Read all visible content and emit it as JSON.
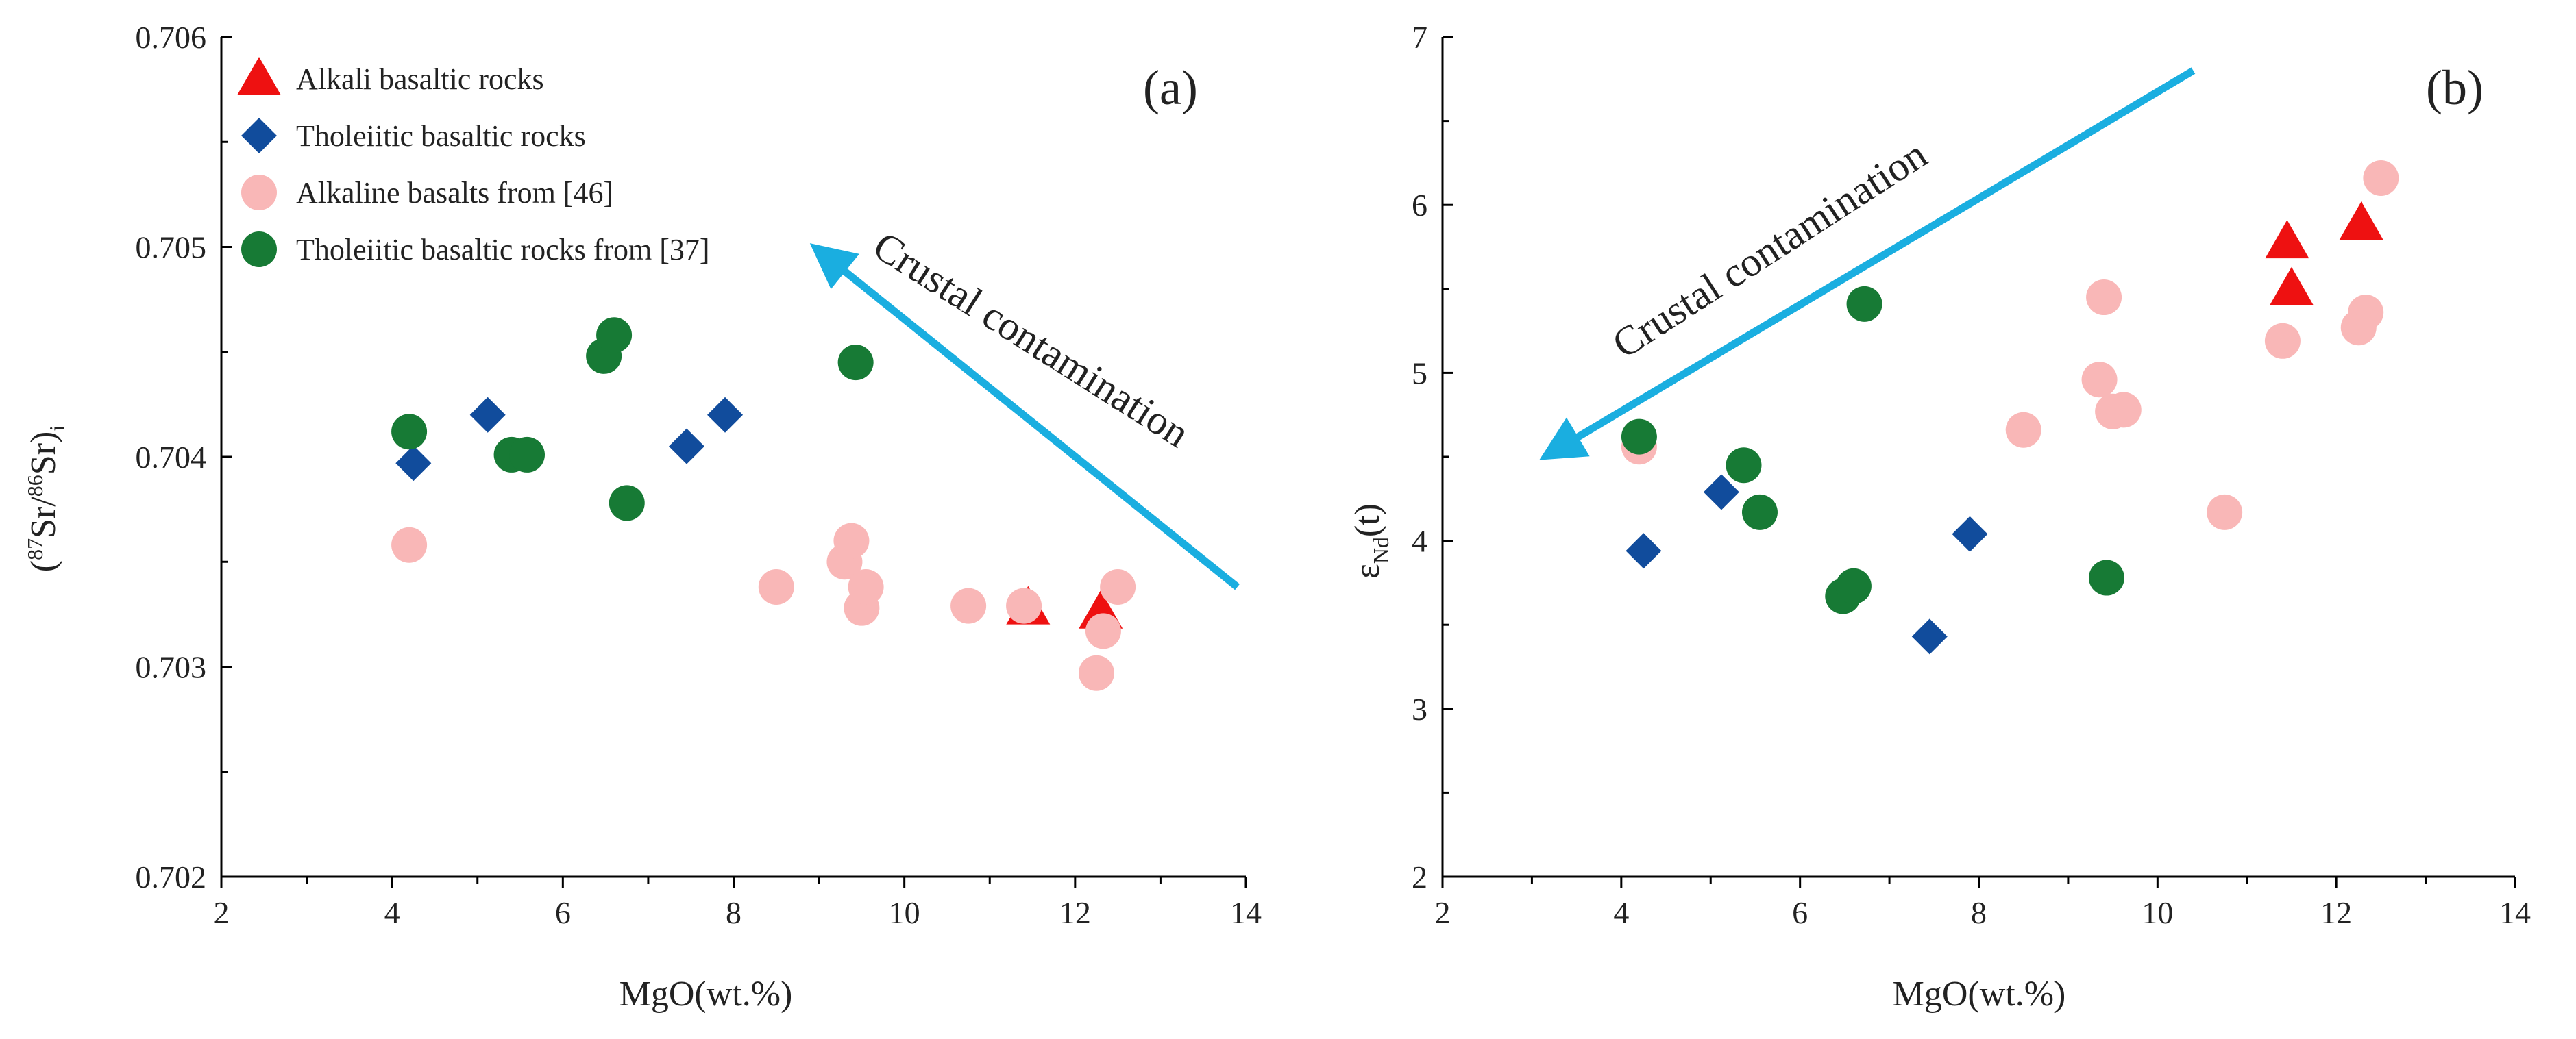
{
  "chart_data": [
    {
      "type": "scatter",
      "panel_label": "(a)",
      "xlabel": "MgO(wt.%)",
      "ylabel": "(87Sr/86Sr)i",
      "xlim": [
        2,
        14
      ],
      "ylim": [
        0.702,
        0.706
      ],
      "x_ticks": [
        2,
        4,
        6,
        8,
        10,
        12,
        14
      ],
      "y_ticks": [
        0.702,
        0.703,
        0.704,
        0.705,
        0.706
      ],
      "y_tick_labels": [
        "0.702",
        "0.703",
        "0.704",
        "0.705",
        "0.706"
      ],
      "grid": false,
      "legend_position": "top-left",
      "annotation": {
        "text": "Crustal contamination",
        "arrow_from": [
          13.9,
          0.70338
        ],
        "arrow_to": [
          9.1,
          0.70495
        ]
      },
      "series": [
        {
          "name": "Alkali basaltic rocks",
          "marker": "triangle",
          "color": "#ee1111",
          "points": [
            [
              11.45,
              0.70328
            ],
            [
              12.3,
              0.70326
            ]
          ]
        },
        {
          "name": "Tholeiitic basaltic rocks",
          "marker": "diamond",
          "color": "#114c9c",
          "points": [
            [
              4.25,
              0.70397
            ],
            [
              5.12,
              0.7042
            ],
            [
              7.45,
              0.70405
            ],
            [
              7.9,
              0.7042
            ]
          ]
        },
        {
          "name": "Alkaline  basalts from [46]",
          "marker": "circle",
          "color": "#f9b7b7",
          "points": [
            [
              4.2,
              0.70358
            ],
            [
              8.5,
              0.70338
            ],
            [
              9.3,
              0.7035
            ],
            [
              9.38,
              0.7036
            ],
            [
              9.5,
              0.70328
            ],
            [
              9.55,
              0.70338
            ],
            [
              10.75,
              0.70329
            ],
            [
              11.4,
              0.70329
            ],
            [
              12.25,
              0.70297
            ],
            [
              12.33,
              0.70317
            ],
            [
              12.5,
              0.70338
            ]
          ]
        },
        {
          "name": "Tholeiitic basaltic rocks from [37]",
          "marker": "circle",
          "color": "#177a35",
          "points": [
            [
              4.2,
              0.70412
            ],
            [
              5.4,
              0.70401
            ],
            [
              5.58,
              0.70401
            ],
            [
              6.48,
              0.70448
            ],
            [
              6.6,
              0.70458
            ],
            [
              6.75,
              0.70378
            ],
            [
              9.43,
              0.70445
            ]
          ]
        }
      ]
    },
    {
      "type": "scatter",
      "panel_label": "(b)",
      "xlabel": "MgO(wt.%)",
      "ylabel": "εNd(t)",
      "xlim": [
        2,
        14
      ],
      "ylim": [
        2,
        7
      ],
      "x_ticks": [
        2,
        4,
        6,
        8,
        10,
        12,
        14
      ],
      "y_ticks": [
        2,
        3,
        4,
        5,
        6,
        7
      ],
      "y_tick_labels": [
        "2",
        "3",
        "4",
        "5",
        "6",
        "7"
      ],
      "grid": false,
      "legend_position": "none",
      "annotation": {
        "text": "Crustal contamination",
        "arrow_from": [
          10.4,
          6.8
        ],
        "arrow_to": [
          3.3,
          4.55
        ]
      },
      "series": [
        {
          "name": "Alkali basaltic rocks",
          "marker": "triangle",
          "color": "#ee1111",
          "points": [
            [
              11.45,
              5.78
            ],
            [
              11.5,
              5.5
            ],
            [
              12.28,
              5.89
            ]
          ]
        },
        {
          "name": "Tholeiitic basaltic rocks",
          "marker": "diamond",
          "color": "#114c9c",
          "points": [
            [
              4.25,
              3.94
            ],
            [
              5.12,
              4.29
            ],
            [
              7.45,
              3.43
            ],
            [
              7.9,
              4.04
            ]
          ]
        },
        {
          "name": "Alkaline  basalts from [46]",
          "marker": "circle",
          "color": "#f9b7b7",
          "points": [
            [
              4.2,
              4.56
            ],
            [
              8.5,
              4.66
            ],
            [
              9.35,
              4.96
            ],
            [
              9.4,
              5.45
            ],
            [
              9.5,
              4.77
            ],
            [
              9.62,
              4.78
            ],
            [
              10.75,
              4.17
            ],
            [
              11.4,
              5.19
            ],
            [
              12.25,
              5.27
            ],
            [
              12.33,
              5.36
            ],
            [
              12.5,
              6.16
            ]
          ]
        },
        {
          "name": "Tholeiitic basaltic rocks from [37]",
          "marker": "circle",
          "color": "#177a35",
          "points": [
            [
              4.2,
              4.62
            ],
            [
              5.37,
              4.45
            ],
            [
              5.55,
              4.17
            ],
            [
              6.48,
              3.67
            ],
            [
              6.6,
              3.73
            ],
            [
              6.72,
              5.41
            ],
            [
              9.43,
              3.78
            ]
          ]
        }
      ]
    }
  ],
  "colors": {
    "arrow": "#1aaee0",
    "axis": "#000000"
  }
}
